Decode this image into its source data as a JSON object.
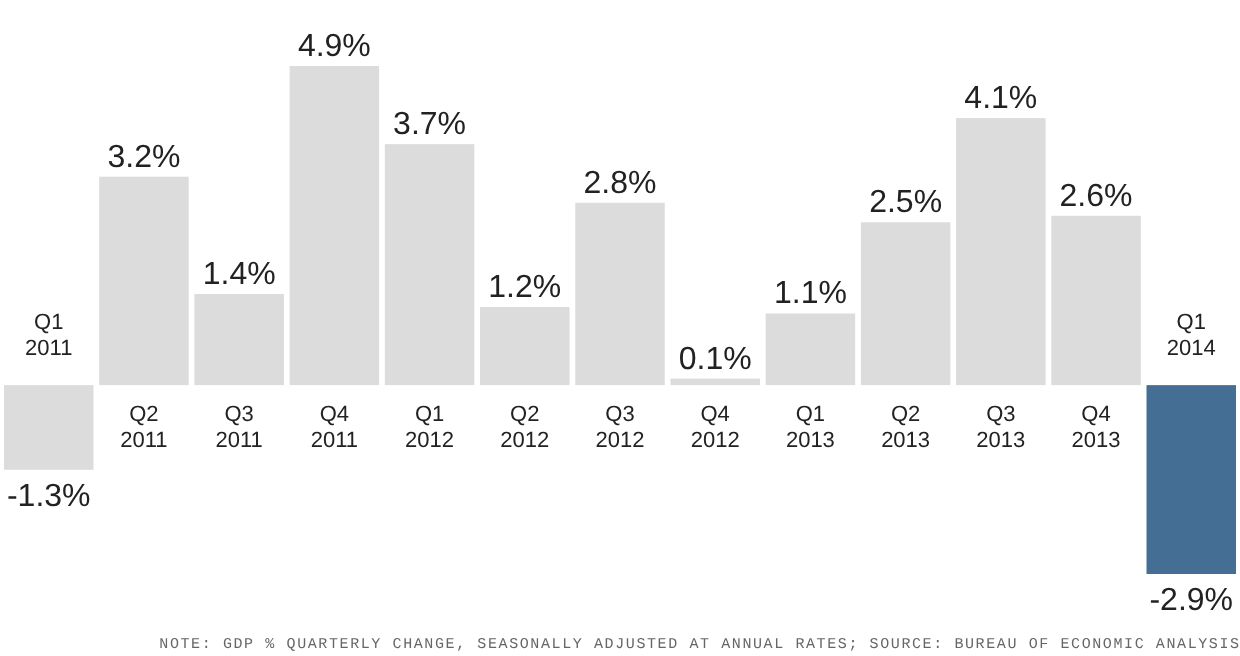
{
  "chart_data": {
    "type": "bar",
    "categories": [
      "Q1 2011",
      "Q2 2011",
      "Q3 2011",
      "Q4 2011",
      "Q1 2012",
      "Q2 2012",
      "Q3 2012",
      "Q4 2012",
      "Q1 2013",
      "Q2 2013",
      "Q3 2013",
      "Q4 2013",
      "Q1 2014"
    ],
    "values": [
      -1.3,
      3.2,
      1.4,
      4.9,
      3.7,
      1.2,
      2.8,
      0.1,
      1.1,
      2.5,
      4.1,
      2.6,
      -2.9
    ],
    "colors": [
      "#dcdcdc",
      "#dcdcdc",
      "#dcdcdc",
      "#dcdcdc",
      "#dcdcdc",
      "#dcdcdc",
      "#dcdcdc",
      "#dcdcdc",
      "#dcdcdc",
      "#dcdcdc",
      "#dcdcdc",
      "#dcdcdc",
      "#446e94"
    ],
    "value_labels": [
      "-1.3%",
      "3.2%",
      "1.4%",
      "4.9%",
      "3.7%",
      "1.2%",
      "2.8%",
      "0.1%",
      "1.1%",
      "2.5%",
      "4.1%",
      "2.6%",
      "-2.9%"
    ],
    "annotations": [
      "NOTE: GDP % QUARTERLY CHANGE, SEASONALLY ADJUSTED AT ANNUAL RATES; SOURCE: BUREAU OF ECONOMIC ANALYSIS"
    ]
  }
}
